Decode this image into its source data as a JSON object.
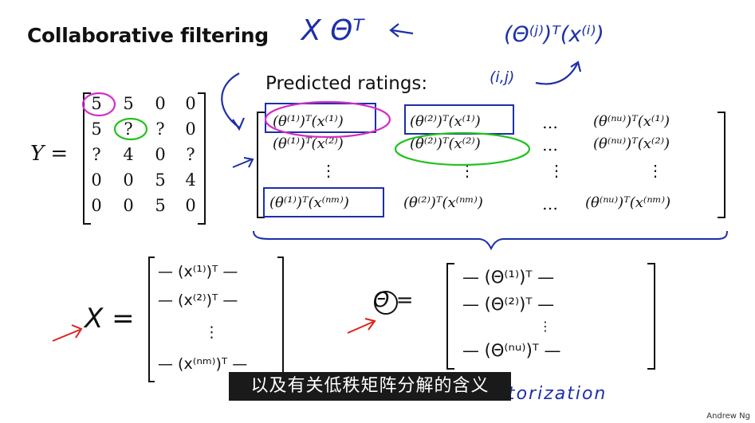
{
  "title": "Collaborative filtering",
  "predicted_title": "Predicted ratings:",
  "y_label": "Y =",
  "y_matrix": [
    [
      "5",
      "5",
      "0",
      "0"
    ],
    [
      "5",
      "?",
      "?",
      "0"
    ],
    [
      "?",
      "4",
      "0",
      "?"
    ],
    [
      "0",
      "0",
      "5",
      "4"
    ],
    [
      "0",
      "0",
      "5",
      "0"
    ]
  ],
  "pred_cells": {
    "r1c1": "(θ⁽¹⁾)ᵀ(x⁽¹⁾)",
    "r1c2": "(θ⁽²⁾)ᵀ(x⁽¹⁾)",
    "r1c4": "(θ⁽ⁿᵘ⁾)ᵀ(x⁽¹⁾)",
    "r2c1": "(θ⁽¹⁾)ᵀ(x⁽²⁾)",
    "r2c2": "(θ⁽²⁾)ᵀ(x⁽²⁾)",
    "r2c4": "(θ⁽ⁿᵘ⁾)ᵀ(x⁽²⁾)",
    "r4c1": "(θ⁽¹⁾)ᵀ(x⁽ⁿᵐ⁾)",
    "r4c2": "(θ⁽²⁾)ᵀ(x⁽ⁿᵐ⁾)",
    "r4c4": "(θ⁽ⁿᵘ⁾)ᵀ(x⁽ⁿᵐ⁾)",
    "hdots": "…",
    "vdots": "⋮"
  },
  "handwriting": {
    "top_expr": "X Θᵀ",
    "top_right_expr": "(Θ⁽ʲ⁾)ᵀ(x⁽ⁱ⁾)",
    "ij_note": "(i,j)",
    "x_label": "X =",
    "x_rows": [
      "— (x⁽¹⁾)ᵀ —",
      "— (x⁽²⁾)ᵀ —",
      "⋮",
      "— (x⁽ⁿᵐ⁾)ᵀ —"
    ],
    "theta_label": "Θ =",
    "theta_rows": [
      "— (Θ⁽¹⁾)ᵀ —",
      "— (Θ⁽²⁾)ᵀ —",
      "⋮",
      "— (Θ⁽ⁿᵘ⁾)ᵀ —"
    ],
    "bottom_note": "Low rank matrix factorization"
  },
  "subtitle": "以及有关低秩矩阵分解的含义",
  "credit": "Andrew Ng",
  "colors": {
    "blue_ink": "#1d2fa8",
    "magenta_ink": "#d12fc8",
    "green_ink": "#22c21f",
    "red_ink": "#e0201c"
  }
}
